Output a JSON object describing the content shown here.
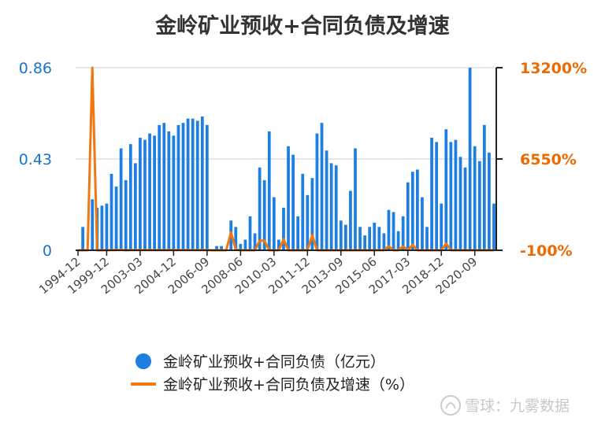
{
  "chart_data": {
    "type": "bar",
    "title": "金岭矿业预收+合同负债及增速",
    "left_axis": {
      "ticks": [
        "0",
        "0.43",
        "0.86"
      ],
      "min": 0,
      "max": 0.86,
      "color": "#1874cd"
    },
    "right_axis": {
      "ticks": [
        "-100%",
        "6550%",
        "13200%"
      ],
      "min": -100,
      "max": 13200,
      "color": "#ee6a00"
    },
    "grid": true,
    "legend_position": "bottom",
    "x_tick_labels": [
      "1994-12",
      "1999-12",
      "2003-03",
      "2004-12",
      "2006-09",
      "2008-06",
      "2010-03",
      "2011-12",
      "2013-09",
      "2015-06",
      "2017-03",
      "2018-12",
      "2020-09"
    ],
    "x_tick_positions": [
      0,
      6,
      13,
      20,
      27,
      34,
      41,
      48,
      55,
      62,
      69,
      76,
      83
    ],
    "series": [
      {
        "name": "金岭矿业预收+合同负债（亿元）",
        "kind": "bar",
        "color": "#1e7fe0",
        "values": [
          0,
          0.11,
          0,
          0.24,
          0.2,
          0.21,
          0.22,
          0.36,
          0.3,
          0.48,
          0.33,
          0.5,
          0.41,
          0.53,
          0.52,
          0.55,
          0.54,
          0.59,
          0.6,
          0.56,
          0.54,
          0.59,
          0.6,
          0.62,
          0.62,
          0.61,
          0.63,
          0.59,
          0,
          0.02,
          0.02,
          0,
          0.14,
          0.11,
          0.03,
          0.05,
          0.16,
          0.08,
          0.39,
          0.33,
          0.56,
          0.25,
          0.05,
          0.2,
          0.49,
          0.45,
          0.16,
          0.36,
          0.26,
          0.34,
          0.55,
          0.6,
          0.47,
          0.41,
          0.4,
          0.14,
          0.12,
          0.28,
          0.48,
          0.11,
          0.07,
          0.11,
          0.13,
          0.11,
          0.08,
          0.19,
          0.18,
          0.09,
          0.16,
          0.32,
          0.37,
          0.38,
          0.25,
          0.11,
          0.53,
          0.51,
          0.22,
          0.57,
          0.51,
          0.52,
          0.44,
          0.39,
          0.86,
          0.49,
          0.42,
          0.59,
          0.46,
          0.22
        ]
      },
      {
        "name": "金岭矿业预收+合同负债及增速（%）",
        "kind": "line",
        "color": "#f07810",
        "values": [
          -100,
          -100,
          -100,
          13200,
          -100,
          -100,
          -100,
          -80,
          -90,
          -70,
          -100,
          -80,
          -90,
          -80,
          -90,
          -80,
          -90,
          -85,
          -80,
          -90,
          -80,
          -85,
          -90,
          -80,
          -90,
          -85,
          -80,
          -90,
          -100,
          -100,
          -100,
          -100,
          1200,
          -50,
          -100,
          -100,
          -100,
          -100,
          600,
          600,
          -100,
          -100,
          -100,
          700,
          -100,
          -100,
          -100,
          -100,
          -100,
          1000,
          -100,
          -100,
          -100,
          -100,
          -100,
          -100,
          -100,
          -100,
          -100,
          -100,
          -100,
          -100,
          -100,
          -100,
          -100,
          200,
          -100,
          -100,
          200,
          -100,
          300,
          -100,
          -100,
          -100,
          -100,
          -100,
          -100,
          400,
          -100,
          -100,
          -100,
          -100,
          -100,
          -100,
          -100,
          -100,
          -100,
          -100
        ]
      }
    ]
  },
  "watermark": "雪球：九雾数据"
}
